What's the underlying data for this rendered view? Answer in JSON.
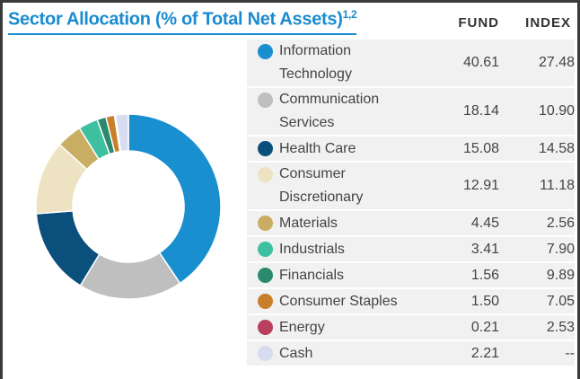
{
  "chart_data": {
    "type": "donut",
    "title": "Sector Allocation (% of Total Net Assets)",
    "title_superscript": "1,2",
    "categories": [
      "Information Technology",
      "Communication Services",
      "Health Care",
      "Consumer Discretionary",
      "Materials",
      "Industrials",
      "Financials",
      "Consumer Staples",
      "Energy",
      "Cash"
    ],
    "colors": [
      "#1a8fd0",
      "#bfbfbf",
      "#0b4f7d",
      "#ede3c2",
      "#c8ad62",
      "#3dbfa0",
      "#2b8a6e",
      "#c97f2a",
      "#b8405e",
      "#d8dcf0"
    ],
    "series": [
      {
        "name": "FUND",
        "values": [
          40.61,
          18.14,
          15.08,
          12.91,
          4.45,
          3.41,
          1.56,
          1.5,
          0.21,
          2.21
        ],
        "value_labels": [
          "40.61",
          "18.14",
          "15.08",
          "12.91",
          "4.45",
          "3.41",
          "1.56",
          "1.50",
          "0.21",
          "2.21"
        ]
      },
      {
        "name": "INDEX",
        "values": [
          27.48,
          10.9,
          14.58,
          11.18,
          2.56,
          7.9,
          9.89,
          7.05,
          2.53,
          null
        ],
        "value_labels": [
          "27.48",
          "10.90",
          "14.58",
          "11.18",
          "2.56",
          "7.90",
          "9.89",
          "7.05",
          "2.53",
          "--"
        ]
      }
    ]
  }
}
